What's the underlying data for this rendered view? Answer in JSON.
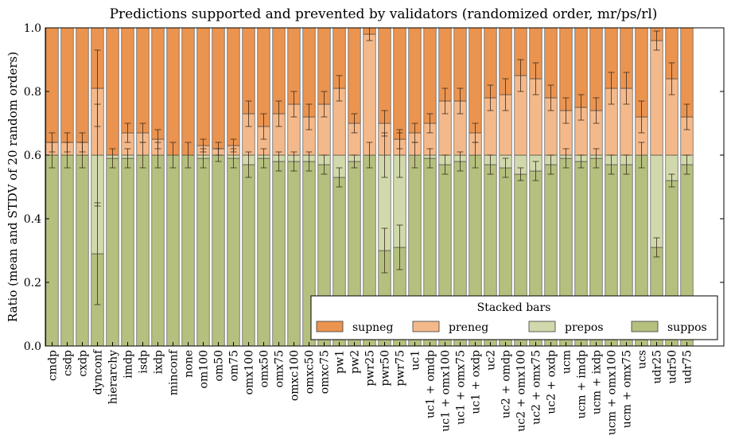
{
  "chart_data": {
    "type": "bar",
    "stacked": true,
    "title": "Predictions supported and prevented by validators (randomized order, mr/ps/rl)",
    "xlabel": "",
    "ylabel": "Ratio (mean and STDV of 20 random orders)",
    "ylim": [
      0,
      1.0
    ],
    "yticks": [
      "0.0",
      "0.2",
      "0.4",
      "0.6",
      "0.8",
      "1.0"
    ],
    "grid": false,
    "legend": {
      "title": "Stacked bars",
      "placement": "lower-right",
      "ncol": 4
    },
    "categories": [
      "cmdp",
      "csdp",
      "cxdp",
      "dynconf",
      "hierarchy",
      "imdp",
      "isdp",
      "ixdp",
      "minconf",
      "none",
      "om100",
      "om50",
      "om75",
      "omx100",
      "omx50",
      "omx75",
      "omxc100",
      "omxc50",
      "omxc75",
      "pw1",
      "pw2",
      "pwr25",
      "pwr50",
      "pwr75",
      "uc1",
      "uc1 + omdp",
      "uc1 + omx100",
      "uc1 + omx75",
      "uc1 + oxdp",
      "uc2",
      "uc2 + omdp",
      "uc2 + omx100",
      "uc2 + omx75",
      "uc2 + oxdp",
      "ucm",
      "ucm + imdp",
      "ucm + ixdp",
      "ucm + omx100",
      "ucm + omx75",
      "ucs",
      "udr25",
      "udr50",
      "udr75"
    ],
    "series": [
      {
        "name": "suppos",
        "color": "#b5c07f",
        "values": [
          0.6,
          0.6,
          0.6,
          0.29,
          0.59,
          0.59,
          0.6,
          0.6,
          0.6,
          0.6,
          0.59,
          0.6,
          0.59,
          0.57,
          0.59,
          0.58,
          0.58,
          0.58,
          0.57,
          0.53,
          0.58,
          0.6,
          0.3,
          0.31,
          0.6,
          0.59,
          0.57,
          0.58,
          0.6,
          0.57,
          0.56,
          0.54,
          0.55,
          0.57,
          0.59,
          0.58,
          0.59,
          0.57,
          0.57,
          0.6,
          0.31,
          0.52,
          0.57
        ],
        "errors": [
          0.04,
          0.04,
          0.04,
          0.16,
          0.03,
          0.03,
          0.04,
          0.04,
          0.04,
          0.04,
          0.03,
          0.02,
          0.03,
          0.04,
          0.03,
          0.03,
          0.03,
          0.03,
          0.03,
          0.03,
          0.02,
          0.04,
          0.07,
          0.07,
          0.04,
          0.03,
          0.03,
          0.03,
          0.04,
          0.03,
          0.03,
          0.02,
          0.03,
          0.03,
          0.03,
          0.02,
          0.03,
          0.03,
          0.03,
          0.04,
          0.03,
          0.02,
          0.03
        ]
      },
      {
        "name": "prepos",
        "color": "#d1d9ac",
        "values": [
          0.0,
          0.0,
          0.0,
          0.31,
          0.01,
          0.01,
          0.0,
          0.0,
          0.0,
          0.0,
          0.01,
          0.0,
          0.01,
          0.03,
          0.01,
          0.02,
          0.02,
          0.02,
          0.03,
          0.07,
          0.02,
          0.0,
          0.3,
          0.29,
          0.0,
          0.01,
          0.03,
          0.02,
          0.0,
          0.03,
          0.04,
          0.06,
          0.05,
          0.03,
          0.01,
          0.02,
          0.01,
          0.03,
          0.03,
          0.0,
          0.29,
          0.08,
          0.03
        ],
        "errors": [
          0,
          0,
          0,
          0.16,
          0,
          0,
          0,
          0,
          0,
          0,
          0,
          0,
          0,
          0,
          0,
          0,
          0,
          0,
          0,
          0,
          0,
          0,
          0.07,
          0.07,
          0,
          0,
          0,
          0,
          0,
          0,
          0,
          0,
          0,
          0,
          0,
          0,
          0,
          0,
          0,
          0,
          0,
          0,
          0
        ]
      },
      {
        "name": "preneg",
        "color": "#f4b98b",
        "values": [
          0.04,
          0.04,
          0.04,
          0.21,
          0.0,
          0.07,
          0.07,
          0.05,
          0.0,
          0.0,
          0.03,
          0.02,
          0.03,
          0.13,
          0.09,
          0.13,
          0.16,
          0.12,
          0.16,
          0.21,
          0.1,
          0.38,
          0.1,
          0.05,
          0.07,
          0.1,
          0.17,
          0.17,
          0.07,
          0.18,
          0.19,
          0.25,
          0.24,
          0.18,
          0.14,
          0.15,
          0.14,
          0.21,
          0.21,
          0.12,
          0.36,
          0.24,
          0.12
        ],
        "errors": [
          0.03,
          0.03,
          0.03,
          0.12,
          0,
          0.03,
          0.03,
          0.03,
          0,
          0,
          0.02,
          0.02,
          0.02,
          0.04,
          0.04,
          0.04,
          0.04,
          0.04,
          0.04,
          0.04,
          0.03,
          0.02,
          0.04,
          0.03,
          0.03,
          0.03,
          0.04,
          0.04,
          0.03,
          0.04,
          0.05,
          0.05,
          0.05,
          0.04,
          0.04,
          0.04,
          0.04,
          0.05,
          0.05,
          0.05,
          0.03,
          0.05,
          0.04
        ]
      },
      {
        "name": "supneg",
        "color": "#eb9450",
        "values": [
          0.36,
          0.36,
          0.36,
          0.19,
          0.4,
          0.33,
          0.33,
          0.35,
          0.4,
          0.4,
          0.37,
          0.38,
          0.37,
          0.27,
          0.31,
          0.27,
          0.24,
          0.28,
          0.24,
          0.19,
          0.3,
          0.02,
          0.3,
          0.35,
          0.33,
          0.3,
          0.23,
          0.23,
          0.33,
          0.22,
          0.21,
          0.15,
          0.16,
          0.22,
          0.26,
          0.25,
          0.26,
          0.19,
          0.19,
          0.28,
          0.04,
          0.16,
          0.28
        ],
        "errors": [
          0,
          0,
          0,
          0,
          0,
          0,
          0,
          0,
          0,
          0,
          0,
          0,
          0,
          0,
          0,
          0,
          0,
          0,
          0,
          0,
          0,
          0,
          0,
          0,
          0,
          0,
          0,
          0,
          0,
          0,
          0,
          0,
          0,
          0,
          0,
          0,
          0,
          0,
          0,
          0,
          0,
          0,
          0
        ]
      }
    ]
  }
}
